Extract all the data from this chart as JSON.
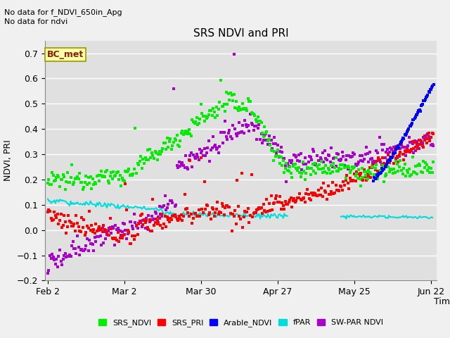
{
  "title": "SRS NDVI and PRI",
  "xlabel": "Time",
  "ylabel": "NDVI, PRI",
  "ylim": [
    -0.2,
    0.75
  ],
  "yticks": [
    -0.2,
    -0.1,
    0.0,
    0.1,
    0.2,
    0.3,
    0.4,
    0.5,
    0.6,
    0.7
  ],
  "note1": "No data for f_NDVI_650in_Apg",
  "note2": "No data for ndvi",
  "bc_met_label": "BC_met",
  "legend_entries": [
    "SRS_NDVI",
    "SRS_PRI",
    "Arable_NDVI",
    "fPAR",
    "SW-PAR NDVI"
  ],
  "legend_colors": [
    "#00ee00",
    "#ff0000",
    "#0000ff",
    "#00dddd",
    "#aa00cc"
  ],
  "colors": {
    "srs_ndvi": "#00ee00",
    "srs_pri": "#ff0000",
    "arable_ndvi": "#0000ff",
    "fpar": "#00dddd",
    "sw_par_ndvi": "#aa00cc"
  },
  "bg_color": "#e0e0e0",
  "fig_color": "#f0f0f0",
  "grid_color": "#ffffff",
  "xtick_labels": [
    "Feb 2",
    "Mar 2",
    "Mar 30",
    "Apr 27",
    "May 25",
    "Jun 22"
  ],
  "xtick_days": [
    33,
    61,
    89,
    117,
    145,
    173
  ]
}
